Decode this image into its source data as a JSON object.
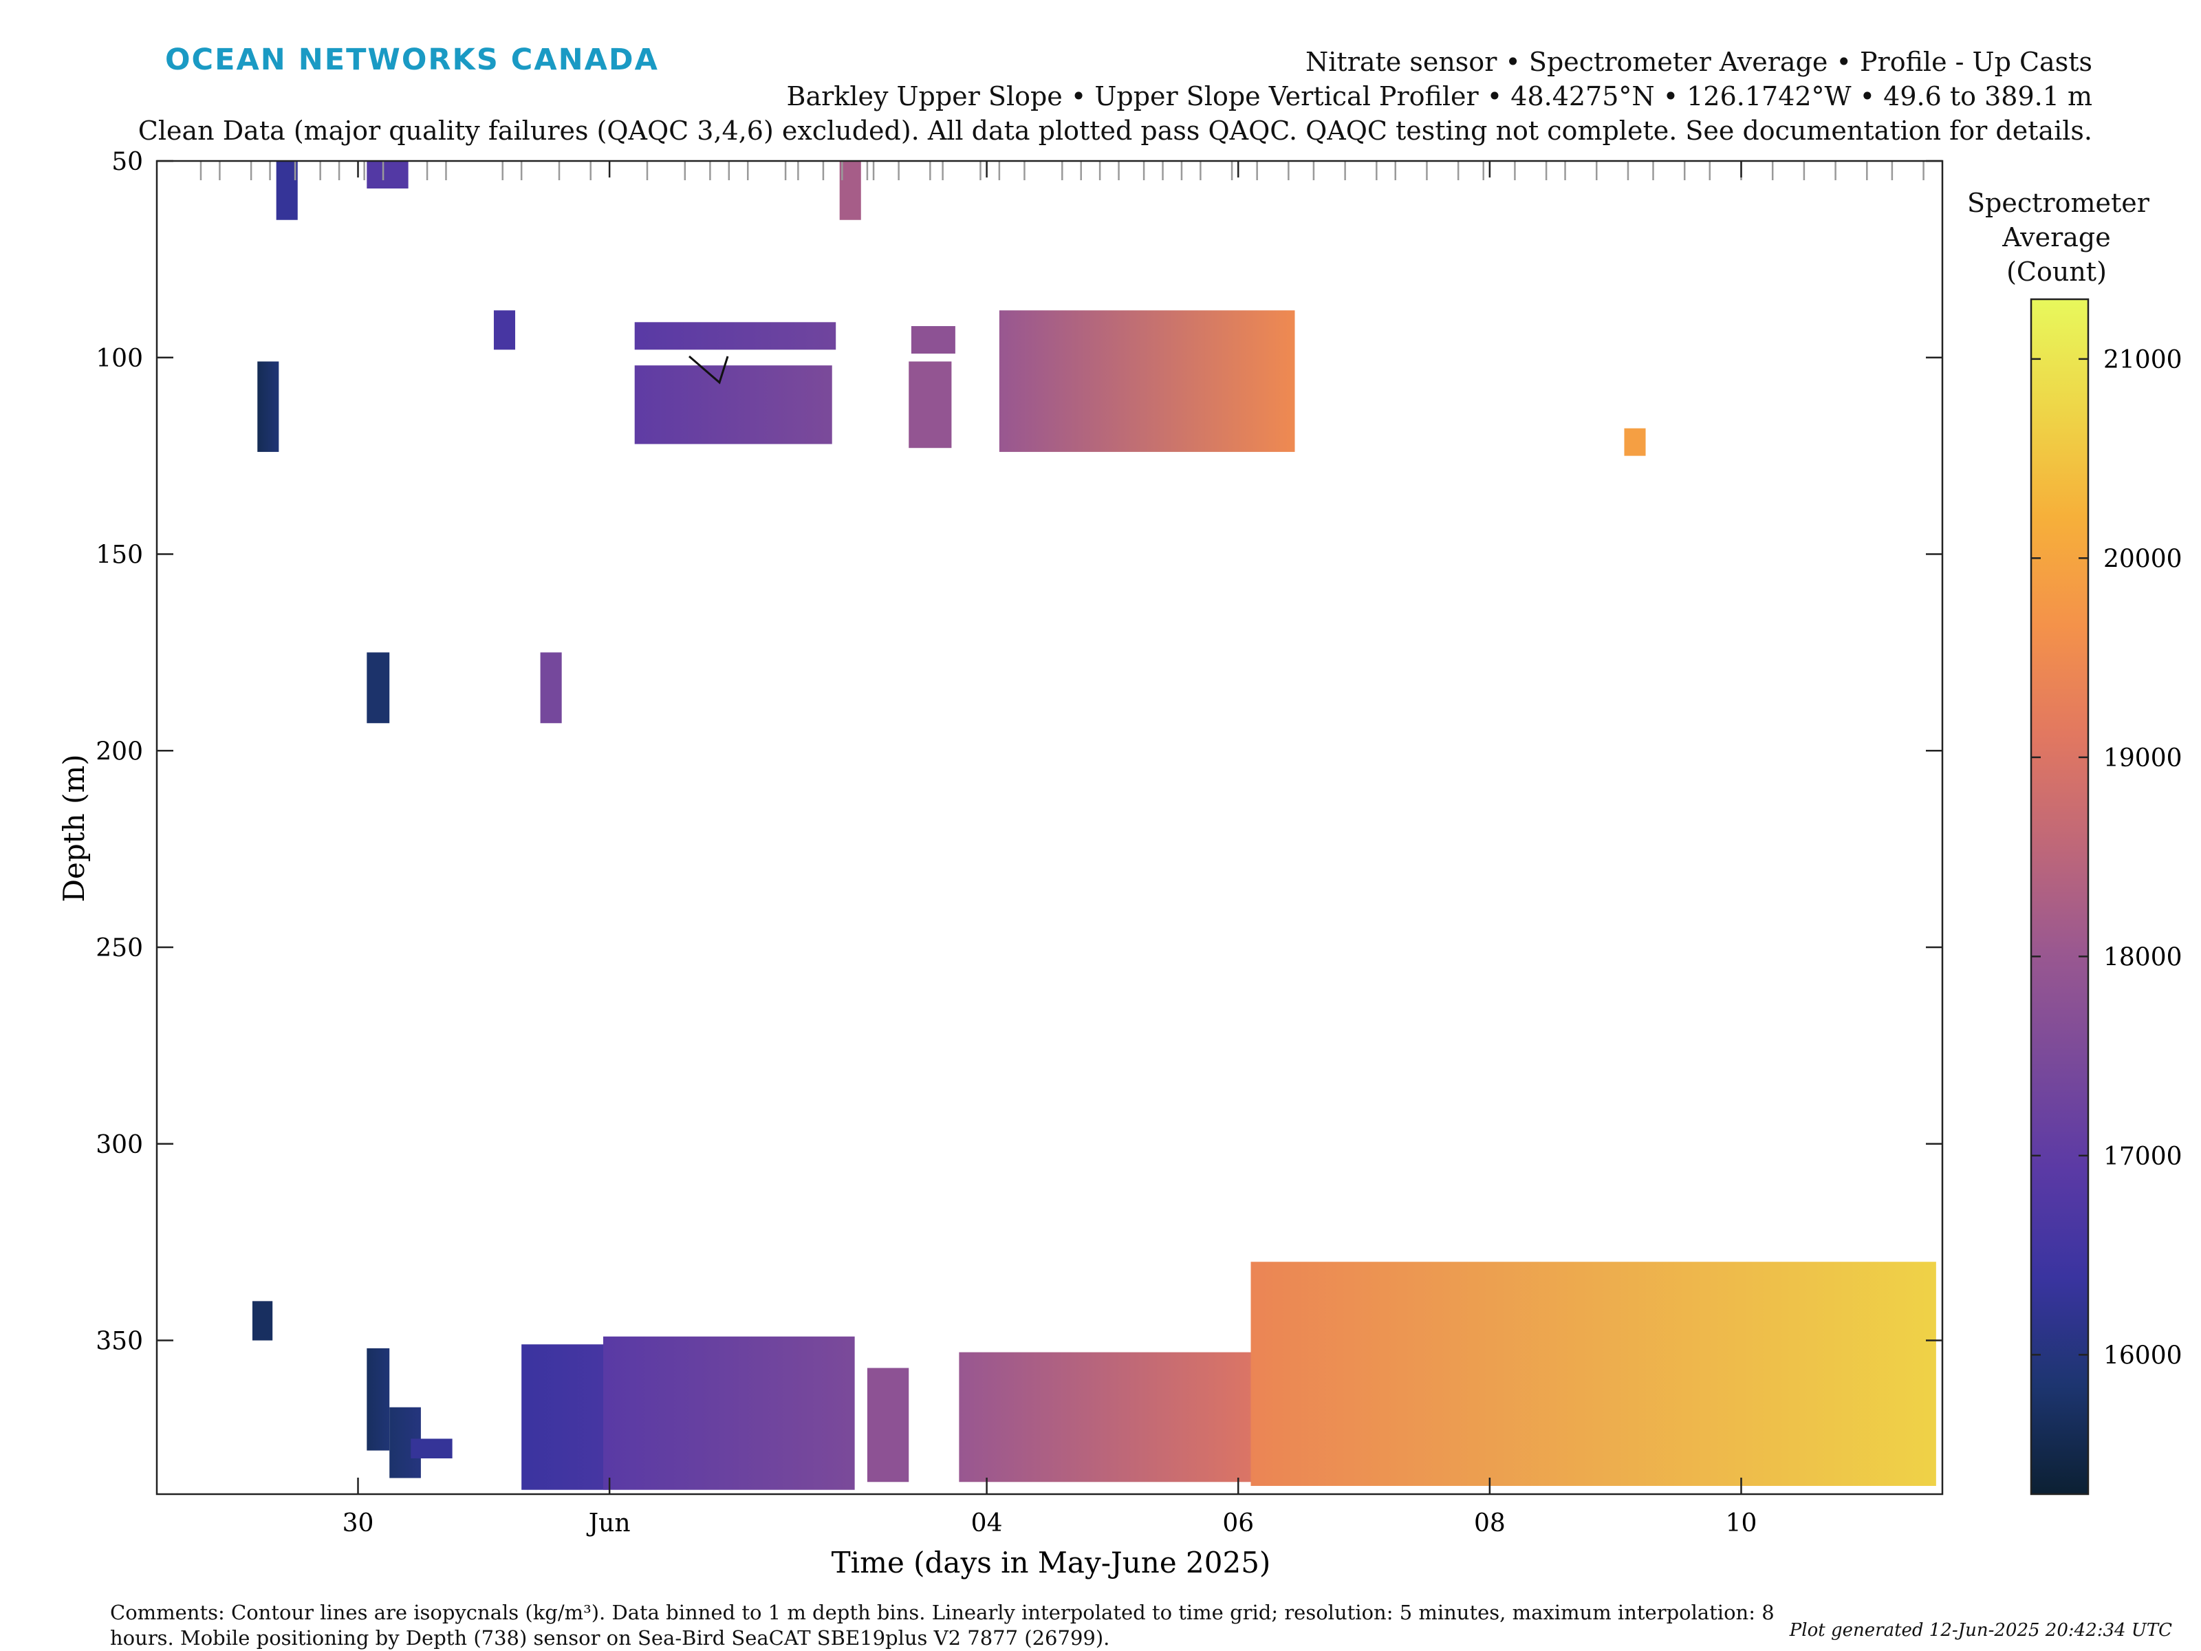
{
  "brand": {
    "logo_text": "OCEAN NETWORKS CANADA",
    "color": "#1a9ac4"
  },
  "header": {
    "line1": "Nitrate sensor • Spectrometer Average • Profile - Up Casts",
    "line2": "Barkley Upper Slope • Upper Slope Vertical Profiler • 48.4275°N • 126.1742°W • 49.6 to 389.1 m",
    "line3": "Clean Data (major quality failures (QAQC 3,4,6) excluded). All data plotted pass QAQC. QAQC testing not complete. See documentation for details."
  },
  "footer": {
    "comments": "Comments: Contour lines are isopycnals (kg/m³). Data binned to 1 m depth bins. Linearly interpolated to time grid; resolution: 5 minutes, maximum interpolation: 8 hours. Mobile positioning by Depth (738) sensor on Sea-Bird SeaCAT SBE19plus V2 7877 (26799).",
    "generated": "Plot generated 12-Jun-2025 20:42:34 UTC"
  },
  "colorbar": {
    "title": [
      "Spectrometer",
      "Average",
      "(Count)"
    ],
    "ticks": [
      "16000",
      "17000",
      "18000",
      "19000",
      "20000",
      "21000"
    ],
    "range": [
      15300,
      21300
    ],
    "colormap": [
      "#0c2033",
      "#1d3570",
      "#3a34a0",
      "#5b3aa5",
      "#7a4a9a",
      "#9a5890",
      "#c06878",
      "#e27860",
      "#f4924a",
      "#f6b03a",
      "#eed648",
      "#e8f85c"
    ]
  },
  "chart_data": {
    "type": "heatmap",
    "title": "Nitrate sensor • Spectrometer Average • Profile - Up Casts",
    "xlabel": "Time (days in May-June 2025)",
    "ylabel": "Depth (m)",
    "x_ticks": [
      "30",
      "Jun",
      "04",
      "06",
      "08",
      "10"
    ],
    "x_tick_days": [
      30,
      32,
      35,
      37,
      39,
      41
    ],
    "x_range_days": [
      28.4,
      42.6
    ],
    "y_ticks": [
      50,
      100,
      150,
      200,
      250,
      300,
      350
    ],
    "ylim": [
      50,
      389.1
    ],
    "y_reversed": true,
    "cast_times_days": [
      28.75,
      28.9,
      29.15,
      29.3,
      29.5,
      29.7,
      29.85,
      30.05,
      30.2,
      30.55,
      30.7,
      31.15,
      31.3,
      31.6,
      31.85,
      32.3,
      32.6,
      32.8,
      32.95,
      33.1,
      33.4,
      33.5,
      33.7,
      33.85,
      34.05,
      34.1,
      34.3,
      34.55,
      34.65,
      34.95,
      35.1,
      35.3,
      35.6,
      35.75,
      35.9,
      36.05,
      36.25,
      36.4,
      36.55,
      36.7,
      36.95,
      37.15,
      37.4,
      37.6,
      37.85,
      38.1,
      38.25,
      38.5,
      38.75,
      38.95,
      39.2,
      39.45,
      39.6,
      39.85,
      40.1,
      40.3,
      40.55,
      40.75,
      41.0,
      41.25,
      41.5,
      41.75,
      42.0,
      42.2,
      42.45
    ],
    "blocks": [
      {
        "t0": 29.35,
        "t1": 29.52,
        "d0": 50,
        "d1": 65,
        "v0": 16300,
        "v1": 16300
      },
      {
        "t0": 30.07,
        "t1": 30.4,
        "d0": 50,
        "d1": 57,
        "v0": 16800,
        "v1": 16800
      },
      {
        "t0": 33.83,
        "t1": 34.0,
        "d0": 50,
        "d1": 65,
        "v0": 18200,
        "v1": 18200
      },
      {
        "t0": 31.08,
        "t1": 31.25,
        "d0": 88,
        "d1": 98,
        "v0": 16600,
        "v1": 16600
      },
      {
        "t0": 29.2,
        "t1": 29.37,
        "d0": 101,
        "d1": 124,
        "v0": 15600,
        "v1": 15900
      },
      {
        "t0": 32.2,
        "t1": 33.8,
        "d0": 91,
        "d1": 98,
        "v0": 16900,
        "v1": 17300
      },
      {
        "t0": 32.2,
        "t1": 33.77,
        "d0": 102,
        "d1": 122,
        "v0": 17000,
        "v1": 17500
      },
      {
        "t0": 34.4,
        "t1": 34.75,
        "d0": 92,
        "d1": 99,
        "v0": 17800,
        "v1": 17800
      },
      {
        "t0": 34.38,
        "t1": 34.72,
        "d0": 101,
        "d1": 123,
        "v0": 17900,
        "v1": 17900
      },
      {
        "t0": 35.1,
        "t1": 37.45,
        "d0": 88,
        "d1": 124,
        "v0": 18000,
        "v1": 19500
      },
      {
        "t0": 40.07,
        "t1": 40.24,
        "d0": 118,
        "d1": 125,
        "v0": 19900,
        "v1": 19900
      },
      {
        "t0": 30.07,
        "t1": 30.25,
        "d0": 175,
        "d1": 193,
        "v0": 15800,
        "v1": 15800
      },
      {
        "t0": 31.45,
        "t1": 31.62,
        "d0": 175,
        "d1": 193,
        "v0": 17400,
        "v1": 17400
      },
      {
        "t0": 29.16,
        "t1": 29.32,
        "d0": 340,
        "d1": 350,
        "v0": 15700,
        "v1": 15700
      },
      {
        "t0": 30.07,
        "t1": 30.25,
        "d0": 352,
        "d1": 378,
        "v0": 15700,
        "v1": 15900
      },
      {
        "t0": 30.25,
        "t1": 30.5,
        "d0": 367,
        "d1": 385,
        "v0": 15800,
        "v1": 16000
      },
      {
        "t0": 30.42,
        "t1": 30.75,
        "d0": 375,
        "d1": 380,
        "v0": 16300,
        "v1": 16300
      },
      {
        "t0": 31.3,
        "t1": 32.0,
        "d0": 351,
        "d1": 388,
        "v0": 16400,
        "v1": 16600
      },
      {
        "t0": 31.95,
        "t1": 33.95,
        "d0": 349,
        "d1": 388,
        "v0": 16900,
        "v1": 17500
      },
      {
        "t0": 34.05,
        "t1": 34.38,
        "d0": 357,
        "d1": 386,
        "v0": 17800,
        "v1": 17800
      },
      {
        "t0": 34.78,
        "t1": 37.1,
        "d0": 353,
        "d1": 386,
        "v0": 18000,
        "v1": 19000
      },
      {
        "t0": 37.1,
        "t1": 42.55,
        "d0": 330,
        "d1": 387,
        "v0": 19400,
        "v1": 20700
      }
    ]
  }
}
